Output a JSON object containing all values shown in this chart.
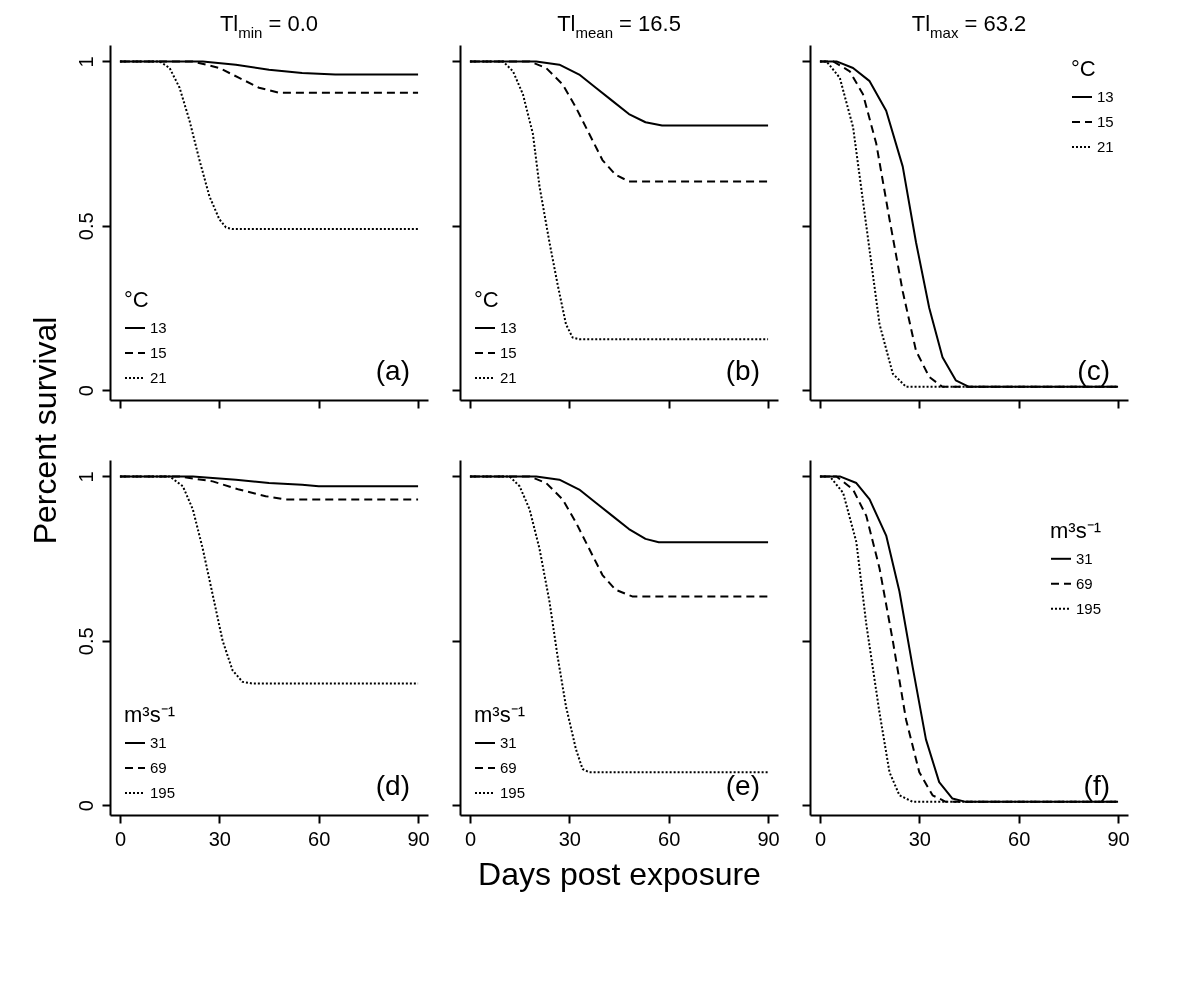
{
  "chart_data": [
    {
      "type": "line",
      "title": "Tl$_{min}$ = 0.0",
      "ylabel": "Percent survival",
      "xlim": [
        -3,
        93
      ],
      "xticks": [
        0,
        30,
        60,
        90
      ],
      "ylim": [
        -0.03,
        1.05
      ],
      "yticks": [
        0,
        0.5,
        1
      ],
      "tick_labels": "y",
      "legend": "bottom left",
      "legend_title": "°C",
      "annotations": [
        "(a)"
      ],
      "series": [
        {
          "name": "13",
          "color": "#000000",
          "line_style": "solid",
          "x": [
            0,
            25,
            35,
            45,
            55,
            65,
            90
          ],
          "values": [
            1,
            1,
            0.99,
            0.975,
            0.965,
            0.96,
            0.96
          ]
        },
        {
          "name": "15",
          "color": "#000000",
          "line_style": "dashed",
          "x": [
            0,
            22,
            30,
            36,
            42,
            48,
            90
          ],
          "values": [
            1,
            1,
            0.98,
            0.95,
            0.92,
            0.905,
            0.905
          ]
        },
        {
          "name": "21",
          "color": "#000000",
          "line_style": "dotted",
          "x": [
            0,
            12,
            15,
            18,
            21,
            24,
            27,
            30,
            32,
            34,
            90
          ],
          "values": [
            1,
            1,
            0.98,
            0.92,
            0.82,
            0.7,
            0.59,
            0.52,
            0.495,
            0.49,
            0.49
          ]
        }
      ]
    },
    {
      "type": "line",
      "title": "Tl$_{mean}$ = 16.5",
      "xlim": [
        -3,
        93
      ],
      "xticks": [
        0,
        30,
        60,
        90
      ],
      "ylim": [
        -0.03,
        1.05
      ],
      "yticks": [
        0,
        0.5,
        1
      ],
      "tick_labels": false,
      "legend": "bottom left",
      "legend_title": "°C",
      "annotations": [
        "(b)"
      ],
      "series": [
        {
          "name": "13",
          "color": "#000000",
          "line_style": "solid",
          "x": [
            0,
            20,
            27,
            33,
            38,
            43,
            48,
            53,
            58,
            90
          ],
          "values": [
            1,
            1,
            0.99,
            0.96,
            0.92,
            0.88,
            0.84,
            0.815,
            0.805,
            0.805
          ]
        },
        {
          "name": "15",
          "color": "#000000",
          "line_style": "dashed",
          "x": [
            0,
            18,
            23,
            28,
            32,
            36,
            40,
            44,
            48,
            90
          ],
          "values": [
            1,
            1,
            0.98,
            0.93,
            0.86,
            0.78,
            0.7,
            0.655,
            0.635,
            0.635
          ]
        },
        {
          "name": "21",
          "color": "#000000",
          "line_style": "dotted",
          "x": [
            0,
            10,
            13,
            16,
            19,
            21,
            24,
            26.5,
            29,
            31,
            33,
            90
          ],
          "values": [
            1,
            1,
            0.97,
            0.9,
            0.78,
            0.62,
            0.45,
            0.32,
            0.2,
            0.16,
            0.155,
            0.155
          ]
        }
      ]
    },
    {
      "type": "line",
      "title": "Tl$_{max}$ = 63.2",
      "xlim": [
        -3,
        93
      ],
      "xticks": [
        0,
        30,
        60,
        90
      ],
      "ylim": [
        -0.03,
        1.05
      ],
      "yticks": [
        0,
        0.5,
        1
      ],
      "tick_labels": false,
      "legend": "top right",
      "legend_title": "°C",
      "annotations": [
        "(c)"
      ],
      "series": [
        {
          "name": "13",
          "color": "#000000",
          "line_style": "solid",
          "x": [
            0,
            5,
            10,
            15,
            20,
            25,
            29,
            33,
            37,
            41,
            45,
            90
          ],
          "values": [
            1,
            1,
            0.98,
            0.94,
            0.85,
            0.68,
            0.45,
            0.25,
            0.1,
            0.03,
            0.01,
            0.01
          ]
        },
        {
          "name": "15",
          "color": "#000000",
          "line_style": "dashed",
          "x": [
            0,
            4,
            9,
            13,
            17,
            21,
            25,
            29,
            33,
            37,
            90
          ],
          "values": [
            1,
            1,
            0.97,
            0.9,
            0.75,
            0.52,
            0.3,
            0.12,
            0.04,
            0.01,
            0.01
          ]
        },
        {
          "name": "21",
          "color": "#000000",
          "line_style": "dotted",
          "x": [
            0,
            2,
            6,
            10,
            14,
            18,
            22,
            26,
            90
          ],
          "values": [
            1,
            1,
            0.95,
            0.8,
            0.5,
            0.2,
            0.05,
            0.01,
            0.01
          ]
        }
      ]
    },
    {
      "type": "line",
      "xlim": [
        -3,
        93
      ],
      "xticks": [
        0,
        30,
        60,
        90
      ],
      "ylim": [
        -0.03,
        1.05
      ],
      "yticks": [
        0,
        0.5,
        1
      ],
      "legend": "bottom left",
      "legend_title": "m³s⁻¹",
      "annotations": [
        "(d)"
      ],
      "series": [
        {
          "name": "31",
          "color": "#000000",
          "line_style": "solid",
          "x": [
            0,
            22,
            35,
            45,
            55,
            60,
            90
          ],
          "values": [
            1,
            1,
            0.99,
            0.98,
            0.975,
            0.97,
            0.97
          ]
        },
        {
          "name": "69",
          "color": "#000000",
          "line_style": "dashed",
          "x": [
            0,
            18,
            28,
            36,
            44,
            50,
            90
          ],
          "values": [
            1,
            1,
            0.985,
            0.96,
            0.94,
            0.93,
            0.93
          ]
        },
        {
          "name": "195",
          "color": "#000000",
          "line_style": "dotted",
          "x": [
            0,
            15,
            19,
            22,
            25,
            28,
            31,
            34,
            37,
            40,
            90
          ],
          "values": [
            1,
            1,
            0.97,
            0.9,
            0.78,
            0.64,
            0.5,
            0.41,
            0.375,
            0.37,
            0.37
          ]
        }
      ]
    },
    {
      "type": "line",
      "xlabel": "Days post exposure",
      "xlim": [
        -3,
        93
      ],
      "xticks": [
        0,
        30,
        60,
        90
      ],
      "ylim": [
        -0.03,
        1.05
      ],
      "yticks": [
        0,
        0.5,
        1
      ],
      "tick_labels": "x",
      "legend": "bottom left",
      "legend_title": "m³s⁻¹",
      "annotations": [
        "(e)"
      ],
      "series": [
        {
          "name": "31",
          "color": "#000000",
          "line_style": "solid",
          "x": [
            0,
            20,
            27,
            33,
            38,
            43,
            48,
            53,
            57,
            90
          ],
          "values": [
            1,
            1,
            0.99,
            0.96,
            0.92,
            0.88,
            0.84,
            0.81,
            0.8,
            0.8
          ]
        },
        {
          "name": "69",
          "color": "#000000",
          "line_style": "dashed",
          "x": [
            0,
            18,
            23,
            28,
            32,
            36,
            40,
            44,
            49,
            90
          ],
          "values": [
            1,
            1,
            0.98,
            0.93,
            0.86,
            0.78,
            0.7,
            0.655,
            0.635,
            0.635
          ]
        },
        {
          "name": "195",
          "color": "#000000",
          "line_style": "dotted",
          "x": [
            0,
            12,
            15,
            18,
            21,
            24,
            26.5,
            29,
            32,
            34,
            36,
            90
          ],
          "values": [
            1,
            1,
            0.97,
            0.9,
            0.78,
            0.62,
            0.45,
            0.3,
            0.17,
            0.11,
            0.1,
            0.1
          ]
        }
      ]
    },
    {
      "type": "line",
      "xlim": [
        -3,
        93
      ],
      "xticks": [
        0,
        30,
        60,
        90
      ],
      "ylim": [
        -0.03,
        1.05
      ],
      "yticks": [
        0,
        0.5,
        1
      ],
      "tick_labels": "x",
      "legend": "right",
      "legend_title": "m³s⁻¹",
      "annotations": [
        "(f)"
      ],
      "series": [
        {
          "name": "31",
          "color": "#000000",
          "line_style": "solid",
          "x": [
            0,
            6,
            11,
            15,
            20,
            24,
            28,
            32,
            36,
            40,
            44,
            90
          ],
          "values": [
            1,
            1,
            0.98,
            0.93,
            0.82,
            0.65,
            0.42,
            0.2,
            0.07,
            0.02,
            0.01,
            0.01
          ]
        },
        {
          "name": "69",
          "color": "#000000",
          "line_style": "dashed",
          "x": [
            0,
            5,
            10,
            14,
            18,
            22,
            26,
            30,
            34,
            38,
            90
          ],
          "values": [
            1,
            1,
            0.96,
            0.88,
            0.72,
            0.5,
            0.26,
            0.1,
            0.03,
            0.01,
            0.01
          ]
        },
        {
          "name": "195",
          "color": "#000000",
          "line_style": "dotted",
          "x": [
            0,
            3,
            7,
            11,
            14,
            18,
            21,
            24,
            28,
            90
          ],
          "values": [
            1,
            1,
            0.95,
            0.8,
            0.55,
            0.28,
            0.1,
            0.03,
            0.01,
            0.01
          ]
        }
      ]
    }
  ]
}
